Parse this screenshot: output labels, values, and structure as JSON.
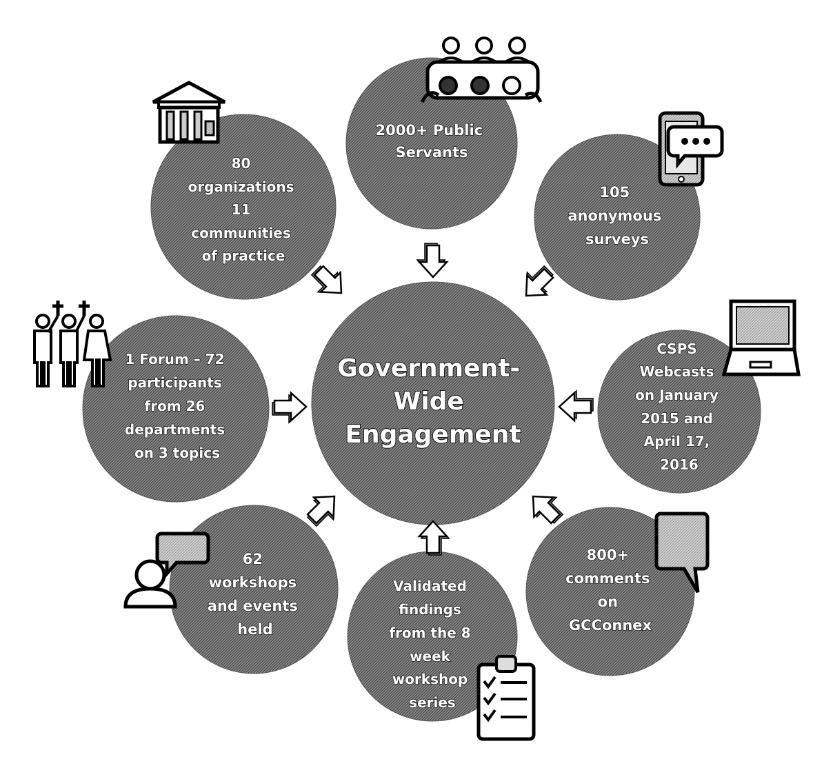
{
  "diagram": {
    "center": {
      "lines": [
        "Government-",
        "Wide",
        "Engagement"
      ]
    },
    "nodes": [
      {
        "id": "public-servants",
        "icon": "audience-icon",
        "lines": [
          "2000+ Public",
          "Servants"
        ]
      },
      {
        "id": "surveys",
        "icon": "phone-chat-icon",
        "lines": [
          "105",
          "anonymous",
          "surveys"
        ]
      },
      {
        "id": "webcasts",
        "icon": "laptop-icon",
        "lines": [
          "CSPS",
          "Webcasts",
          "on January",
          "2015 and",
          "April 17,",
          "2016"
        ]
      },
      {
        "id": "gcconnex",
        "icon": "speech-bubble-icon",
        "lines": [
          "800+",
          "comments",
          "on",
          "GCConnex"
        ]
      },
      {
        "id": "validated-findings",
        "icon": "clipboard-checklist-icon",
        "lines": [
          "Validated",
          "findings",
          "from the 8",
          "week",
          "workshop",
          "series"
        ]
      },
      {
        "id": "workshops",
        "icon": "person-speech-icon",
        "lines": [
          "62",
          "workshops",
          "and events",
          "held"
        ]
      },
      {
        "id": "forum",
        "icon": "people-group-icon",
        "lines": [
          "1 Forum – 72",
          "participants",
          "from 26",
          "departments",
          "on 3 topics"
        ]
      },
      {
        "id": "organizations",
        "icon": "government-building-icon",
        "lines": [
          "80",
          "organizations",
          "11",
          "communities",
          "of practice"
        ]
      }
    ],
    "colors": {
      "circle_fill": "#7a7a7a",
      "circle_hatch": "#5a5a5a",
      "text_fill": "#ffffff",
      "outline": "#222222",
      "background": "#ffffff"
    }
  }
}
